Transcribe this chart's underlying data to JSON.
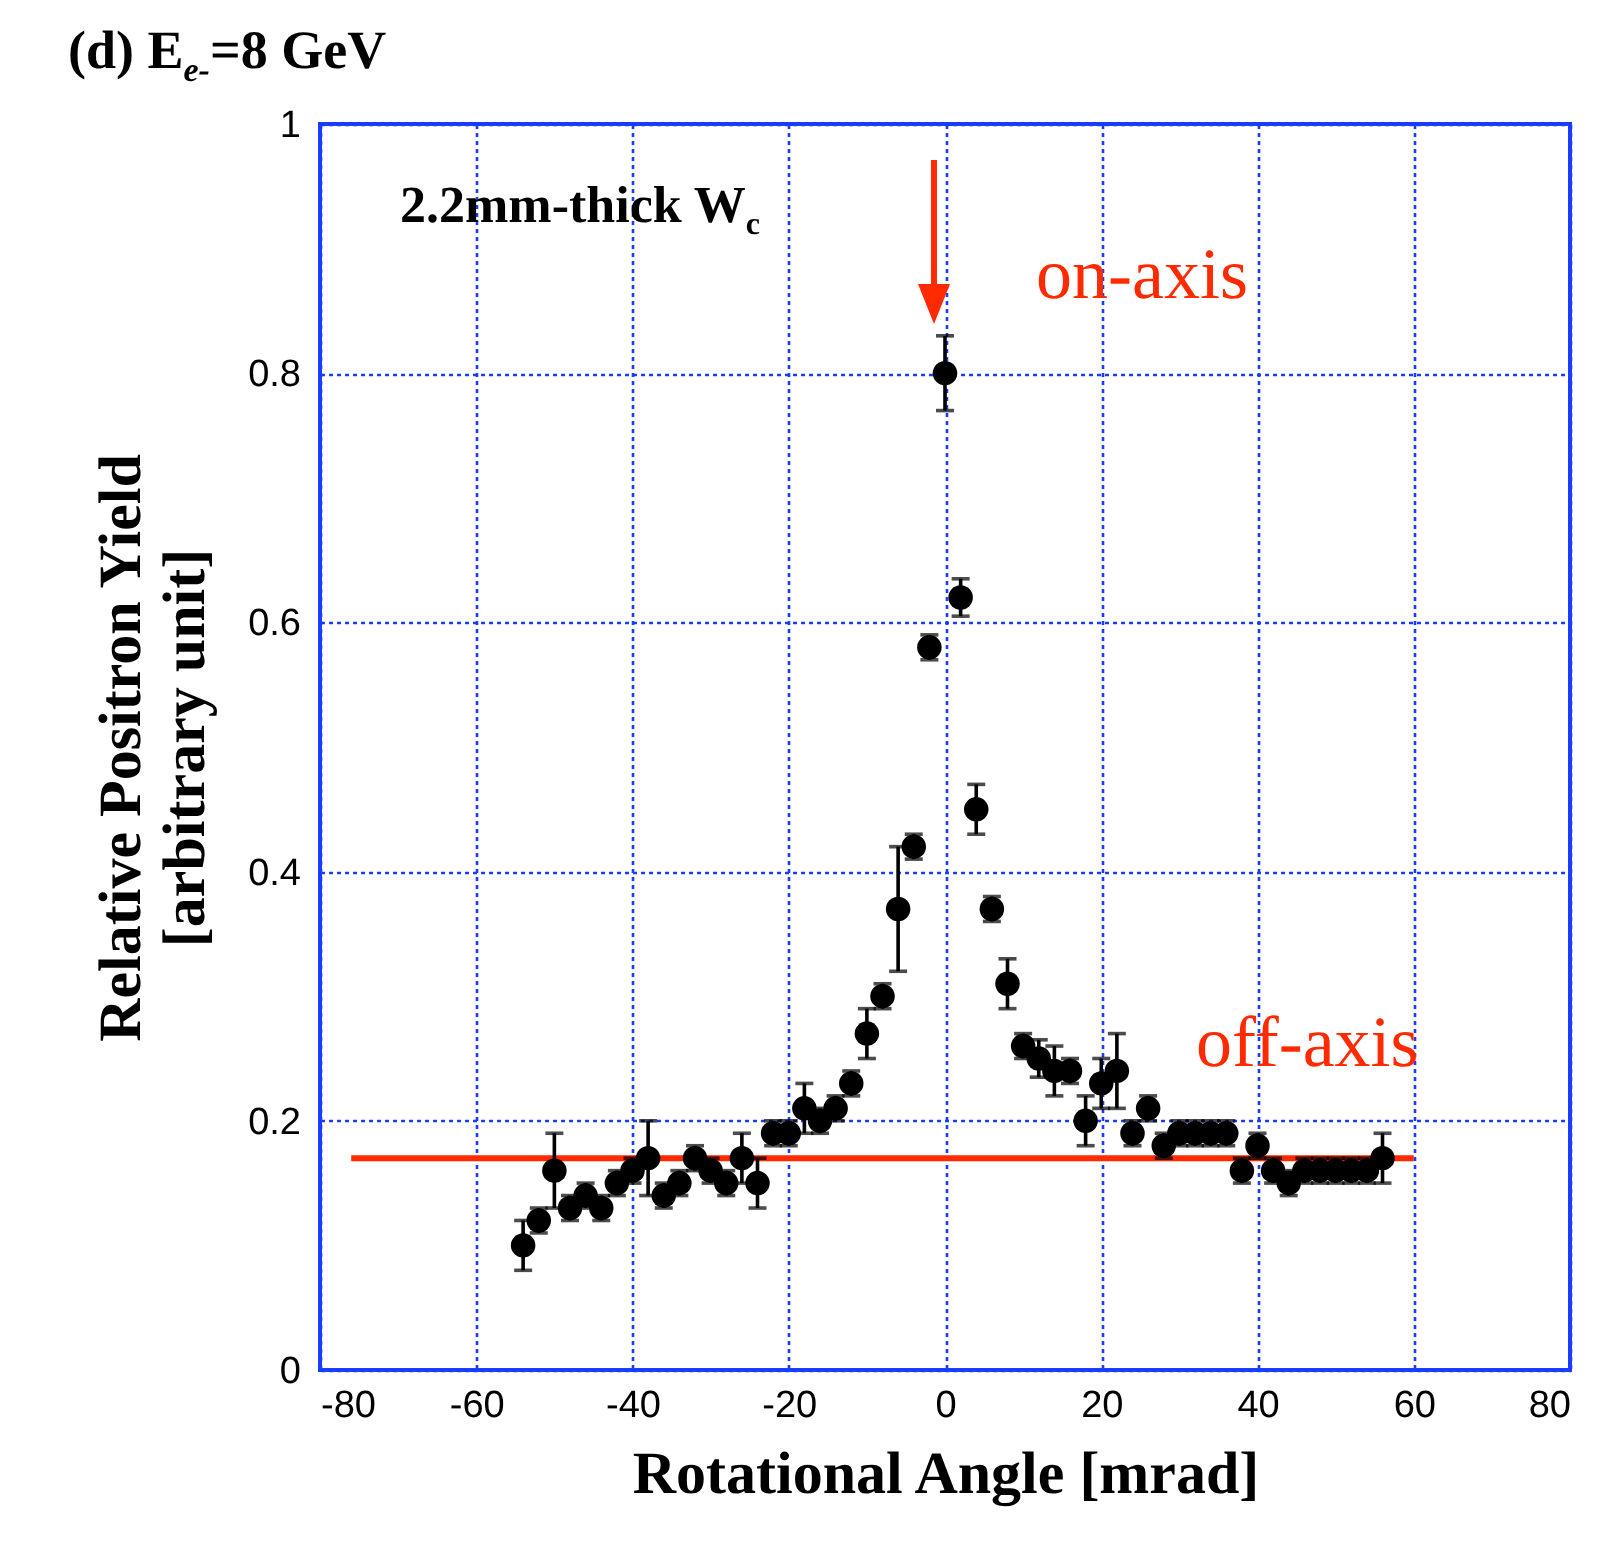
{
  "chart_data": {
    "type": "scatter",
    "title": "(d) E$_{e-}$=8 GeV",
    "xlabel": "Rotational Angle [mrad]",
    "ylabel": "Relative Positron Yield\n[arbitrary unit]",
    "annotations": [
      "2.2mm-thick W$_{c}$",
      "on-axis",
      "off-axis"
    ],
    "xlim": [
      -80,
      80
    ],
    "xticks": [
      -80,
      -60,
      -40,
      -20,
      0,
      20,
      40,
      60,
      80
    ],
    "ylim": [
      0,
      1
    ],
    "yticks": [
      0,
      0.2,
      0.4,
      0.6,
      0.8,
      1
    ],
    "grid": true,
    "series": [
      {
        "type": "line",
        "color": "#ff2a00",
        "x": [
          -76,
          60
        ],
        "values": [
          0.17,
          0.17
        ]
      },
      {
        "marker": "circle",
        "color": "#000000",
        "x": [
          -54,
          -52,
          -50,
          -48,
          -46,
          -44,
          -42,
          -40,
          -38,
          -36,
          -34,
          -32,
          -30,
          -28,
          -26,
          -24,
          -22,
          -20,
          -18,
          -16,
          -14,
          -12,
          -10,
          -8,
          -6,
          -4,
          -2,
          0,
          2,
          4,
          6,
          8,
          10,
          12,
          14,
          16,
          18,
          20,
          22,
          24,
          26,
          28,
          30,
          32,
          34,
          36,
          38,
          40,
          42,
          44,
          46,
          48,
          50,
          52,
          54,
          56
        ],
        "values": [
          0.1,
          0.12,
          0.16,
          0.13,
          0.14,
          0.13,
          0.15,
          0.16,
          0.17,
          0.14,
          0.15,
          0.17,
          0.16,
          0.15,
          0.17,
          0.15,
          0.19,
          0.19,
          0.21,
          0.2,
          0.21,
          0.23,
          0.27,
          0.3,
          0.37,
          0.42,
          0.58,
          0.8,
          0.62,
          0.45,
          0.37,
          0.31,
          0.26,
          0.25,
          0.24,
          0.24,
          0.2,
          0.23,
          0.24,
          0.19,
          0.21,
          0.18,
          0.19,
          0.19,
          0.19,
          0.19,
          0.16,
          0.18,
          0.16,
          0.15,
          0.16,
          0.16,
          0.16,
          0.16,
          0.16,
          0.17
        ],
        "errors": [
          0.02,
          0.01,
          0.03,
          0.01,
          0.01,
          0.01,
          0.01,
          0.01,
          0.03,
          0.01,
          0.01,
          0.01,
          0.01,
          0.01,
          0.02,
          0.02,
          0.01,
          0.01,
          0.02,
          0.01,
          0.01,
          0.01,
          0.02,
          0.01,
          0.05,
          0.01,
          0.01,
          0.03,
          0.015,
          0.02,
          0.01,
          0.02,
          0.01,
          0.015,
          0.02,
          0.01,
          0.02,
          0.02,
          0.03,
          0.01,
          0.01,
          0.01,
          0.01,
          0.01,
          0.01,
          0.01,
          0.01,
          0.01,
          0.01,
          0.01,
          0.01,
          0.01,
          0.01,
          0.01,
          0.01,
          0.02
        ]
      }
    ]
  }
}
